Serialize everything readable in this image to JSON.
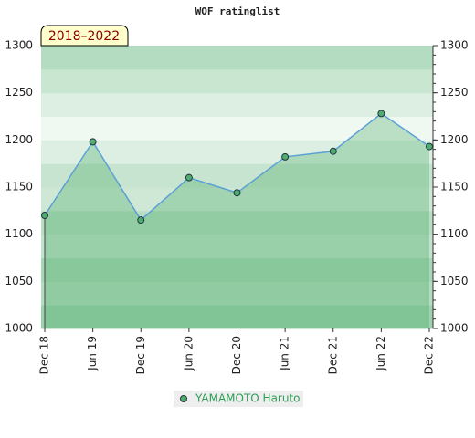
{
  "chart_data": {
    "type": "line",
    "title": "WOF ratinglist",
    "annotation": "2018–2022",
    "categories": [
      "Dec 18",
      "Jun 19",
      "Dec 19",
      "Jun 20",
      "Dec 20",
      "Jun 21",
      "Dec 21",
      "Jun 22",
      "Dec 22"
    ],
    "series": [
      {
        "name": "YAMAMOTO Haruto",
        "color": "#5a9fd6",
        "marker_color": "#4fae6e",
        "values": [
          1120,
          1198,
          1115,
          1160,
          1144,
          1182,
          1188,
          1228,
          1193
        ]
      }
    ],
    "ylim": [
      1000,
      1300
    ],
    "yticks": [
      1000,
      1050,
      1100,
      1150,
      1200,
      1250,
      1300
    ],
    "grid": false,
    "legend": "bottom"
  }
}
